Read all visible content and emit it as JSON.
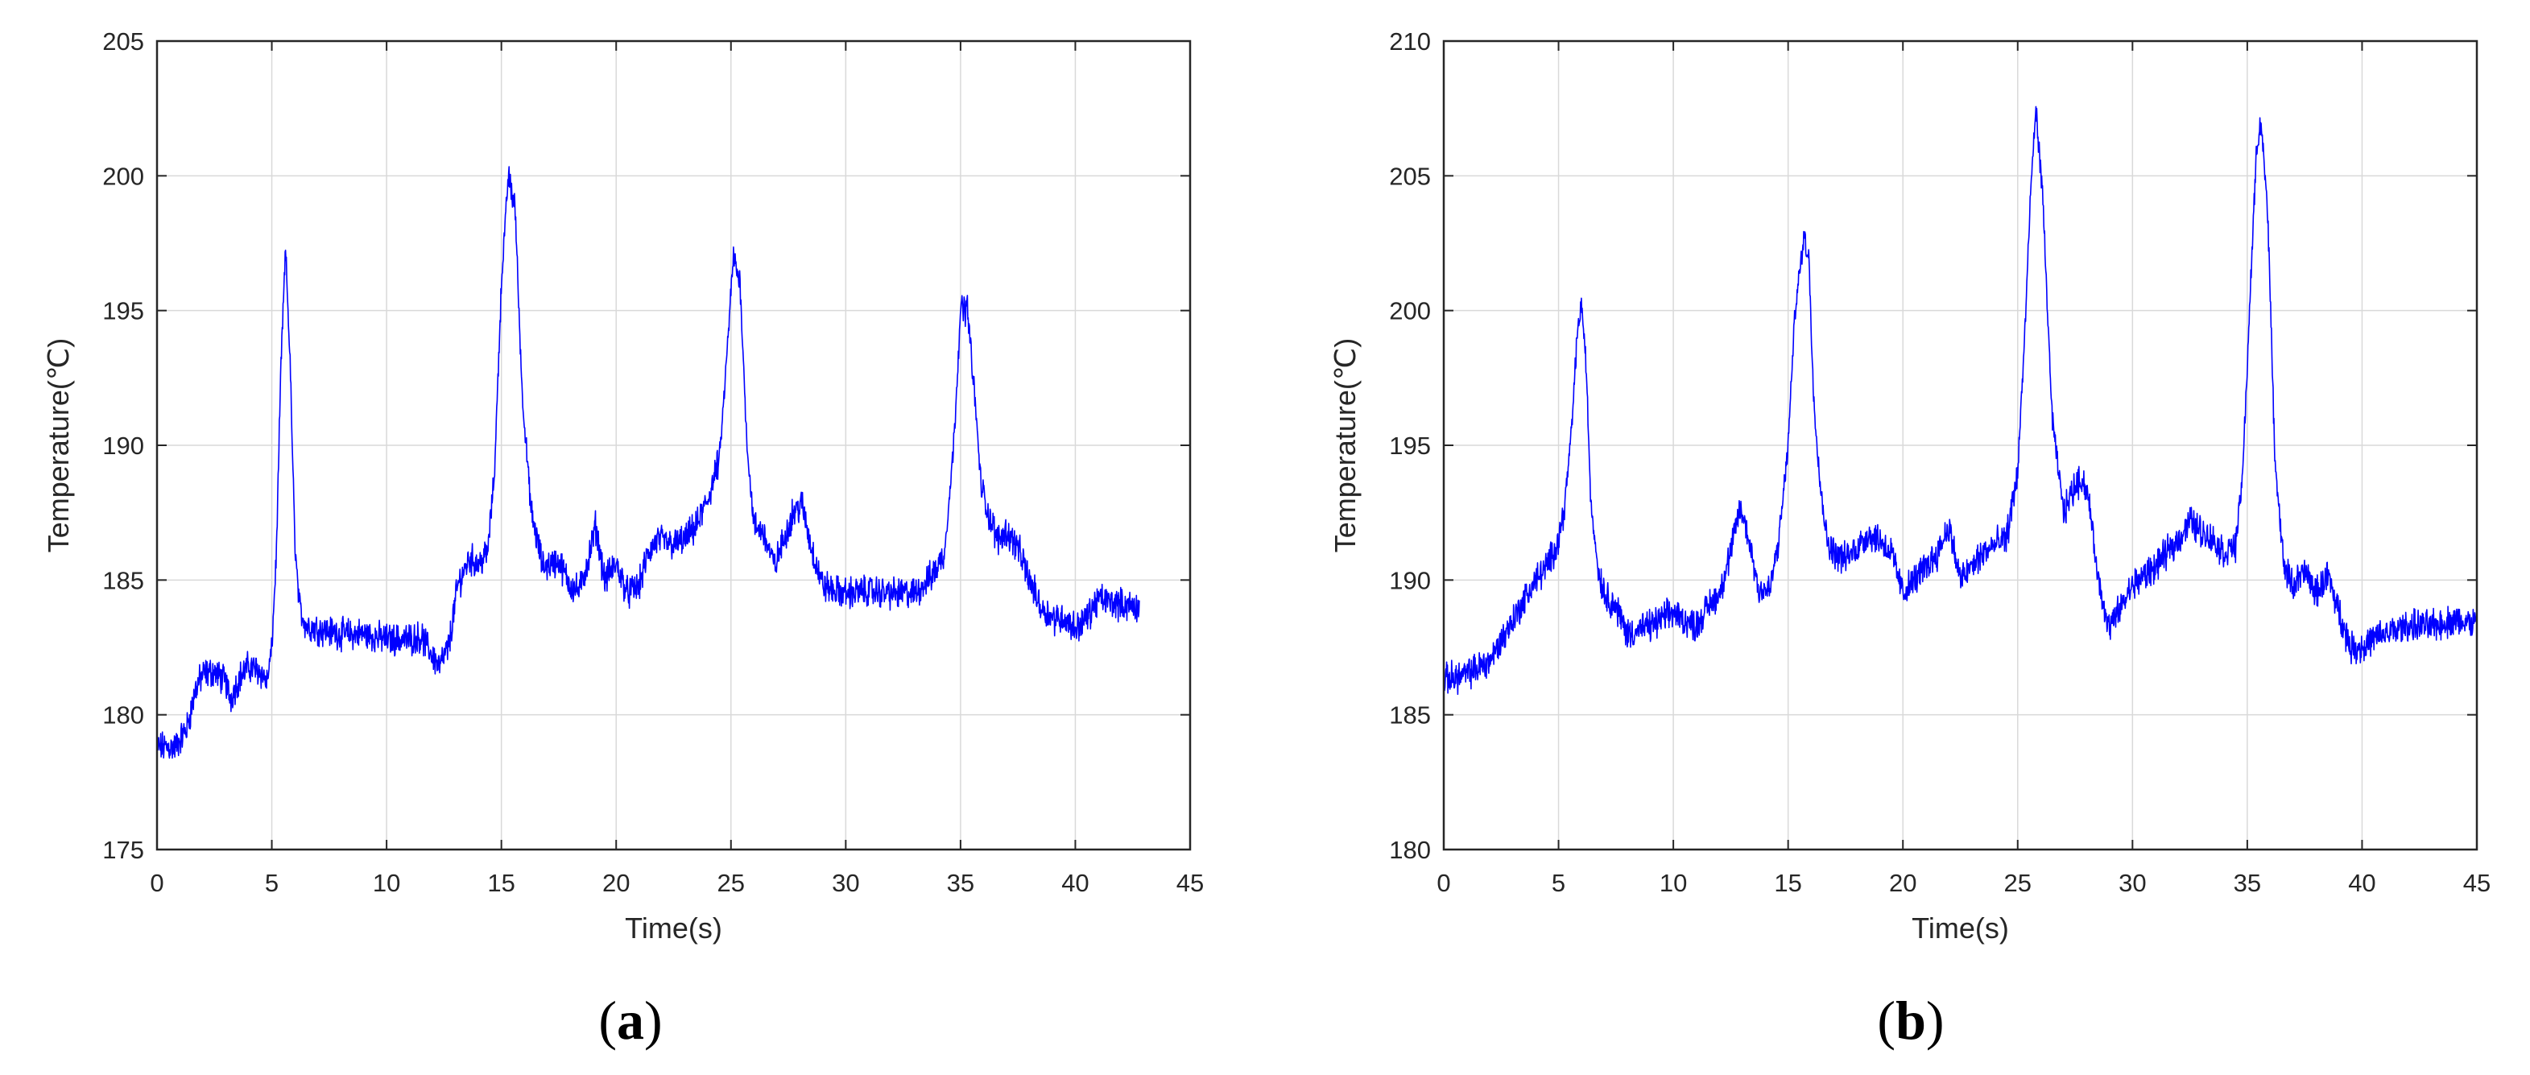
{
  "chart_data": [
    {
      "type": "line",
      "panel_label": "a",
      "xlabel": "Time(s)",
      "ylabel": "Temperature(℃)",
      "xlim": [
        0,
        45
      ],
      "ylim": [
        175,
        205
      ],
      "xticks": [
        0,
        5,
        10,
        15,
        20,
        25,
        30,
        35,
        40,
        45
      ],
      "yticks": [
        175,
        180,
        185,
        190,
        195,
        200,
        205
      ],
      "grid": true,
      "color": "#0000ff",
      "series": [
        {
          "x": [
            0,
            0.8,
            1.3,
            1.7,
            2.0,
            2.5,
            3.0,
            3.2,
            3.6,
            4.0,
            4.5,
            4.8,
            5.0,
            5.2,
            5.4,
            5.6,
            5.8,
            6.0,
            6.2,
            6.5,
            7.0,
            8.0,
            9.0,
            10.0,
            11.0,
            11.5,
            12.0,
            12.3,
            12.7,
            13.1,
            13.6,
            14.0,
            14.4,
            14.7,
            15.0,
            15.3,
            15.6,
            15.9,
            16.3,
            16.8,
            17.5,
            18.0,
            18.4,
            18.8,
            19.1,
            19.5,
            20.0,
            20.5,
            21.0,
            21.4,
            21.8,
            22.5,
            23.0,
            23.5,
            24.0,
            24.5,
            24.8,
            25.1,
            25.4,
            25.7,
            26.0,
            26.4,
            26.9,
            27.3,
            27.7,
            28.1,
            28.5,
            29.0,
            29.5,
            30.0,
            31.0,
            32.0,
            33.0,
            33.8,
            34.3,
            34.7,
            35.0,
            35.3,
            35.6,
            35.9,
            36.2,
            36.6,
            37.0,
            37.5,
            38.0,
            38.5,
            39.0,
            39.5,
            40.0,
            40.5,
            41.0,
            42.0,
            42.8
          ],
          "y": [
            178.8,
            178.8,
            179.5,
            181.0,
            181.5,
            181.6,
            181.2,
            180.6,
            181.4,
            181.8,
            181.6,
            181.2,
            182.5,
            186.0,
            193.0,
            197.3,
            193.0,
            186.5,
            184.0,
            183.3,
            183.2,
            183.0,
            183.0,
            182.8,
            182.8,
            182.9,
            182.2,
            181.8,
            182.5,
            184.8,
            185.8,
            185.6,
            186.0,
            189.0,
            196.0,
            200.0,
            198.8,
            192.0,
            187.5,
            185.5,
            185.7,
            184.8,
            184.6,
            185.8,
            187.0,
            185.0,
            185.6,
            184.5,
            184.8,
            186.0,
            186.5,
            186.3,
            186.5,
            187.0,
            188.0,
            189.5,
            193.0,
            197.0,
            196.0,
            190.0,
            187.0,
            186.8,
            185.5,
            186.5,
            187.5,
            187.8,
            186.2,
            184.8,
            184.6,
            184.5,
            184.6,
            184.5,
            184.5,
            185.2,
            186.0,
            190.0,
            195.0,
            195.1,
            192.0,
            188.5,
            187.5,
            186.5,
            186.8,
            186.2,
            185.0,
            184.0,
            183.6,
            183.6,
            183.2,
            183.6,
            184.3,
            184.1,
            184.0
          ]
        }
      ]
    },
    {
      "type": "line",
      "panel_label": "b",
      "xlabel": "Time(s)",
      "ylabel": "Temperature(℃)",
      "xlim": [
        0,
        45
      ],
      "ylim": [
        180,
        210
      ],
      "xticks": [
        0,
        5,
        10,
        15,
        20,
        25,
        30,
        35,
        40,
        45
      ],
      "yticks": [
        180,
        185,
        190,
        195,
        200,
        205,
        210
      ],
      "grid": true,
      "color": "#0000ff",
      "series": [
        {
          "x": [
            0,
            1.0,
            2.0,
            3.0,
            4.0,
            4.5,
            5.0,
            5.3,
            5.6,
            5.8,
            6.0,
            6.2,
            6.4,
            6.7,
            7.0,
            7.5,
            8.0,
            9.0,
            10.0,
            10.5,
            11.0,
            11.5,
            12.0,
            12.5,
            12.9,
            13.3,
            13.7,
            14.2,
            14.6,
            15.0,
            15.3,
            15.7,
            15.9,
            16.1,
            16.4,
            16.7,
            17.0,
            17.5,
            18.0,
            18.5,
            19.0,
            19.5,
            20.0,
            20.5,
            21.0,
            21.5,
            22.0,
            22.5,
            23.0,
            23.5,
            24.0,
            24.5,
            25.0,
            25.3,
            25.6,
            25.8,
            26.1,
            26.5,
            27.0,
            27.5,
            27.8,
            28.1,
            28.5,
            29.0,
            29.5,
            30.0,
            31.0,
            32.0,
            32.5,
            33.0,
            33.5,
            34.0,
            34.5,
            34.8,
            35.1,
            35.4,
            35.6,
            35.9,
            36.2,
            36.6,
            37.0,
            37.5,
            38.0,
            38.5,
            39.0,
            39.5,
            40.0,
            40.5,
            41.0,
            42.0,
            43.0,
            44.0,
            45.0
          ],
          "y": [
            186.3,
            186.5,
            187.0,
            188.5,
            190.0,
            190.5,
            191.5,
            193.0,
            196.0,
            199.0,
            200.3,
            198.0,
            193.0,
            190.5,
            189.5,
            189.0,
            188.0,
            188.3,
            188.8,
            188.5,
            188.3,
            189.0,
            189.5,
            191.0,
            192.7,
            191.5,
            189.7,
            189.6,
            191.5,
            195.0,
            200.0,
            202.8,
            202.0,
            197.0,
            193.5,
            191.5,
            191.0,
            190.8,
            191.2,
            191.7,
            191.5,
            191.0,
            189.5,
            190.0,
            190.5,
            191.0,
            192.0,
            190.0,
            190.5,
            191.0,
            191.3,
            191.5,
            194.0,
            199.0,
            205.0,
            207.5,
            204.0,
            196.0,
            192.5,
            193.5,
            193.8,
            193.0,
            190.0,
            188.2,
            189.0,
            189.8,
            190.5,
            191.5,
            192.2,
            191.8,
            191.5,
            191.0,
            191.3,
            194.0,
            200.0,
            206.0,
            207.0,
            203.5,
            194.5,
            190.5,
            189.8,
            190.3,
            189.5,
            190.2,
            188.8,
            187.5,
            187.5,
            187.8,
            188.0,
            188.3,
            188.3,
            188.5,
            188.4
          ]
        }
      ]
    }
  ]
}
